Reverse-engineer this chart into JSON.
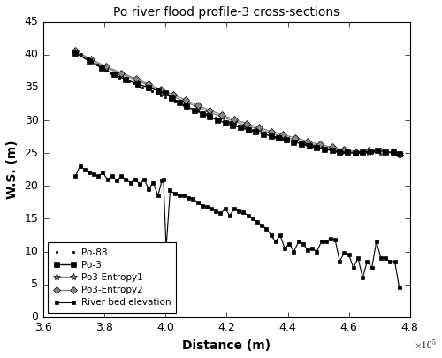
{
  "title": "Po river flood profile-3 cross-sections",
  "xlabel": "Distance (m)",
  "ylabel": "W.S. (m)",
  "xlim": [
    360000,
    480000
  ],
  "ylim": [
    0,
    45
  ],
  "xticks": [
    360000,
    380000,
    400000,
    420000,
    440000,
    460000,
    480000
  ],
  "yticks": [
    0,
    5,
    10,
    15,
    20,
    25,
    30,
    35,
    40,
    45
  ],
  "legend_labels": [
    "Po-88",
    "Po-3",
    "Po3-Entropy1",
    "Po3-Entropy2",
    "River bed elevation"
  ],
  "po88_x": [
    370500,
    372500,
    374500,
    376000,
    377500,
    379000,
    380500,
    382000,
    383500,
    385000,
    386500,
    388000,
    389500,
    391000,
    392500,
    394000,
    395500,
    397000,
    398500,
    400000,
    401500,
    403000,
    404500,
    406000,
    407500,
    409000,
    410500,
    412000,
    413500,
    415000,
    416500,
    418000,
    419500,
    421000,
    422500,
    424000,
    425500,
    427000,
    428500,
    430000,
    432000,
    434000,
    436000,
    438000,
    440000,
    442000,
    444000,
    446000,
    448000,
    450000,
    452000,
    454000,
    456000,
    458000,
    460000,
    462000,
    464000,
    466000,
    468000,
    470000,
    472000,
    474000,
    476000
  ],
  "po88_y": [
    40.5,
    40.1,
    39.6,
    39.0,
    38.5,
    38.0,
    37.6,
    37.2,
    36.8,
    36.5,
    36.2,
    35.9,
    35.6,
    35.3,
    35.0,
    34.7,
    34.4,
    34.1,
    33.8,
    33.5,
    33.2,
    32.9,
    32.6,
    32.3,
    32.0,
    31.7,
    31.5,
    31.2,
    31.0,
    30.7,
    30.4,
    30.2,
    29.9,
    29.7,
    29.5,
    29.2,
    29.0,
    28.8,
    28.5,
    28.3,
    28.0,
    27.7,
    27.4,
    27.2,
    27.0,
    26.8,
    26.5,
    26.3,
    26.1,
    25.9,
    25.7,
    25.5,
    25.3,
    25.2,
    25.1,
    25.0,
    25.1,
    25.2,
    25.3,
    25.2,
    25.1,
    25.0,
    24.8
  ],
  "po3_x": [
    370500,
    375000,
    379000,
    383000,
    387000,
    391000,
    394500,
    397500,
    399800,
    402000,
    404500,
    407000,
    409500,
    412000,
    414500,
    417000,
    419500,
    422000,
    424500,
    427000,
    429500,
    432000,
    434500,
    437000,
    439500,
    442000,
    444500,
    447000,
    449500,
    452000,
    454500,
    457000,
    459500,
    462000,
    464500,
    467000,
    469500,
    472000,
    474500,
    476500
  ],
  "po3_y": [
    40.3,
    39.0,
    38.0,
    37.0,
    36.2,
    35.5,
    35.0,
    34.5,
    34.2,
    33.4,
    32.7,
    32.1,
    31.5,
    31.0,
    30.5,
    30.0,
    29.6,
    29.2,
    28.9,
    28.5,
    28.2,
    27.9,
    27.6,
    27.3,
    27.0,
    26.7,
    26.4,
    26.1,
    25.8,
    25.6,
    25.4,
    25.2,
    25.1,
    25.0,
    25.1,
    25.3,
    25.4,
    25.2,
    25.1,
    24.9
  ],
  "ent1_x": [
    370500,
    375500,
    380500,
    385500,
    390500,
    394500,
    398500,
    402500,
    406500,
    410500,
    414500,
    418500,
    422500,
    426500,
    430500,
    434500,
    438500,
    442500,
    446500,
    450500,
    454500,
    458500,
    462500,
    466500,
    470500,
    474500,
    476500
  ],
  "ent1_y": [
    40.4,
    39.1,
    38.0,
    37.0,
    36.1,
    35.3,
    34.5,
    33.6,
    32.8,
    32.0,
    31.2,
    30.5,
    29.8,
    29.2,
    28.6,
    28.0,
    27.5,
    27.0,
    26.5,
    26.1,
    25.7,
    25.3,
    25.1,
    25.2,
    25.2,
    25.0,
    24.9
  ],
  "ent2_x": [
    370500,
    375500,
    380500,
    385500,
    390500,
    394500,
    398500,
    402500,
    406500,
    410500,
    414500,
    418500,
    422500,
    426500,
    430500,
    434500,
    438500,
    442500,
    446500,
    450500,
    454500,
    458500,
    462500,
    466500,
    470500,
    474500,
    476500
  ],
  "ent2_y": [
    40.6,
    39.3,
    38.2,
    37.2,
    36.3,
    35.5,
    34.7,
    33.9,
    33.1,
    32.3,
    31.5,
    30.8,
    30.1,
    29.5,
    28.9,
    28.3,
    27.8,
    27.3,
    26.8,
    26.3,
    25.9,
    25.5,
    25.2,
    25.4,
    25.3,
    25.1,
    24.8
  ],
  "bed_x": [
    370500,
    372000,
    373500,
    375000,
    376500,
    378000,
    379500,
    381000,
    382500,
    384000,
    385500,
    387000,
    388500,
    390000,
    391500,
    393000,
    394500,
    396000,
    397500,
    398800,
    399300,
    400200,
    401500,
    403000,
    404500,
    406000,
    407500,
    409000,
    410500,
    412000,
    413500,
    415000,
    416500,
    418000,
    419500,
    421000,
    422500,
    424000,
    425500,
    427000,
    428500,
    430000,
    431500,
    433000,
    434500,
    436000,
    437500,
    439000,
    440500,
    442000,
    443500,
    445000,
    446500,
    448000,
    449500,
    451000,
    452500,
    454000,
    455500,
    457000,
    458500,
    460000,
    461500,
    463000,
    464500,
    466000,
    467500,
    469000,
    470500,
    472000,
    473500,
    475000,
    476500
  ],
  "bed_y": [
    21.5,
    23.0,
    22.5,
    22.0,
    21.8,
    21.5,
    22.0,
    21.0,
    21.5,
    20.8,
    21.5,
    21.0,
    20.5,
    21.0,
    20.3,
    21.0,
    19.5,
    20.5,
    18.5,
    20.8,
    21.0,
    10.5,
    19.3,
    18.8,
    18.5,
    18.5,
    18.2,
    18.0,
    17.5,
    17.0,
    16.8,
    16.5,
    16.2,
    15.8,
    16.5,
    15.5,
    16.5,
    16.2,
    16.0,
    15.5,
    15.0,
    14.5,
    14.0,
    13.5,
    12.5,
    11.5,
    12.5,
    10.5,
    11.2,
    10.0,
    11.5,
    11.2,
    10.2,
    10.5,
    10.0,
    11.5,
    11.5,
    12.0,
    11.8,
    8.5,
    9.8,
    9.5,
    7.5,
    9.0,
    6.0,
    8.5,
    7.5,
    11.5,
    9.0,
    9.0,
    8.5,
    8.5,
    4.5
  ]
}
